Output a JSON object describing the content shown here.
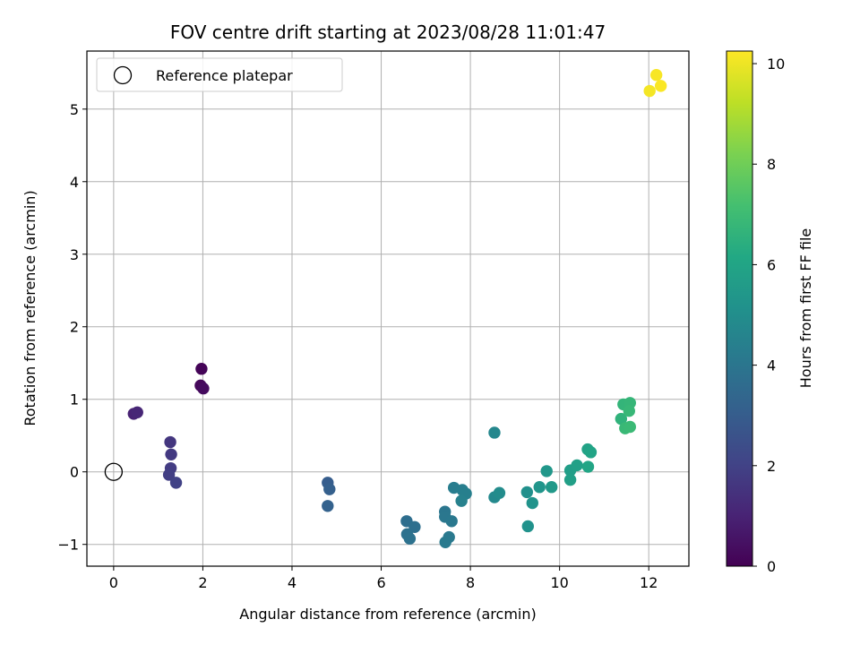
{
  "chart_data": {
    "type": "scatter",
    "title": "FOV centre drift starting at 2023/08/28 11:01:47",
    "xlabel": "Angular distance from reference (arcmin)",
    "ylabel": "Rotation from reference (arcmin)",
    "xlim": [
      -0.6,
      12.9
    ],
    "ylim": [
      -1.3,
      5.8
    ],
    "xticks": [
      0,
      2,
      4,
      6,
      8,
      10,
      12
    ],
    "yticks": [
      -1,
      0,
      1,
      2,
      3,
      4,
      5
    ],
    "xtick_labels": [
      "0",
      "2",
      "4",
      "6",
      "8",
      "10",
      "12"
    ],
    "ytick_labels": [
      "−1",
      "0",
      "1",
      "2",
      "3",
      "4",
      "5"
    ],
    "grid": true,
    "legend": {
      "position": "top-left",
      "entries": [
        "Reference platepar"
      ]
    },
    "reference_point": {
      "x": 0,
      "y": 0,
      "label": "Reference platepar"
    },
    "colorbar": {
      "label": "Hours from first FF file",
      "colormap": "viridis",
      "range": [
        0,
        10.25
      ],
      "ticks": [
        0,
        2,
        4,
        6,
        8,
        10
      ],
      "tick_labels": [
        "0",
        "2",
        "4",
        "6",
        "8",
        "10"
      ]
    },
    "series": [
      {
        "points": [
          {
            "x": 1.97,
            "y": 1.42,
            "c": 0.1
          },
          {
            "x": 1.95,
            "y": 1.19,
            "c": 0.2
          },
          {
            "x": 2.01,
            "y": 1.15,
            "c": 0.3
          },
          {
            "x": 0.45,
            "y": 0.8,
            "c": 1.0
          },
          {
            "x": 0.53,
            "y": 0.82,
            "c": 1.1
          },
          {
            "x": 1.27,
            "y": 0.41,
            "c": 1.6
          },
          {
            "x": 1.29,
            "y": 0.24,
            "c": 1.7
          },
          {
            "x": 1.28,
            "y": 0.05,
            "c": 1.8
          },
          {
            "x": 1.24,
            "y": -0.04,
            "c": 1.9
          },
          {
            "x": 1.4,
            "y": -0.15,
            "c": 2.0
          },
          {
            "x": 4.8,
            "y": -0.15,
            "c": 3.0
          },
          {
            "x": 4.84,
            "y": -0.24,
            "c": 3.1
          },
          {
            "x": 4.8,
            "y": -0.47,
            "c": 3.2
          },
          {
            "x": 6.57,
            "y": -0.68,
            "c": 3.7
          },
          {
            "x": 6.75,
            "y": -0.76,
            "c": 3.75
          },
          {
            "x": 6.58,
            "y": -0.86,
            "c": 3.8
          },
          {
            "x": 6.64,
            "y": -0.92,
            "c": 3.85
          },
          {
            "x": 7.43,
            "y": -0.55,
            "c": 4.0
          },
          {
            "x": 7.43,
            "y": -0.62,
            "c": 4.05
          },
          {
            "x": 7.58,
            "y": -0.68,
            "c": 4.1
          },
          {
            "x": 7.52,
            "y": -0.9,
            "c": 4.15
          },
          {
            "x": 7.44,
            "y": -0.97,
            "c": 4.2
          },
          {
            "x": 7.63,
            "y": -0.22,
            "c": 4.3
          },
          {
            "x": 7.82,
            "y": -0.25,
            "c": 4.35
          },
          {
            "x": 7.9,
            "y": -0.3,
            "c": 4.4
          },
          {
            "x": 7.8,
            "y": -0.4,
            "c": 4.45
          },
          {
            "x": 8.54,
            "y": 0.54,
            "c": 4.7
          },
          {
            "x": 8.54,
            "y": -0.35,
            "c": 4.8
          },
          {
            "x": 8.65,
            "y": -0.29,
            "c": 4.9
          },
          {
            "x": 9.27,
            "y": -0.28,
            "c": 5.1
          },
          {
            "x": 9.29,
            "y": -0.75,
            "c": 5.15
          },
          {
            "x": 9.39,
            "y": -0.43,
            "c": 5.2
          },
          {
            "x": 9.55,
            "y": -0.21,
            "c": 5.3
          },
          {
            "x": 9.71,
            "y": 0.01,
            "c": 5.4
          },
          {
            "x": 9.82,
            "y": -0.21,
            "c": 5.45
          },
          {
            "x": 10.24,
            "y": 0.02,
            "c": 5.7
          },
          {
            "x": 10.24,
            "y": -0.11,
            "c": 5.75
          },
          {
            "x": 10.39,
            "y": 0.09,
            "c": 5.8
          },
          {
            "x": 10.63,
            "y": 0.31,
            "c": 5.9
          },
          {
            "x": 10.7,
            "y": 0.27,
            "c": 5.95
          },
          {
            "x": 10.64,
            "y": 0.07,
            "c": 6.0
          },
          {
            "x": 11.38,
            "y": 0.73,
            "c": 6.6
          },
          {
            "x": 11.43,
            "y": 0.93,
            "c": 6.7
          },
          {
            "x": 11.58,
            "y": 0.95,
            "c": 6.75
          },
          {
            "x": 11.56,
            "y": 0.84,
            "c": 6.8
          },
          {
            "x": 11.47,
            "y": 0.6,
            "c": 6.85
          },
          {
            "x": 11.58,
            "y": 0.62,
            "c": 6.9
          },
          {
            "x": 12.02,
            "y": 5.25,
            "c": 10.1
          },
          {
            "x": 12.17,
            "y": 5.47,
            "c": 10.15
          },
          {
            "x": 12.27,
            "y": 5.32,
            "c": 10.2
          }
        ]
      }
    ]
  }
}
